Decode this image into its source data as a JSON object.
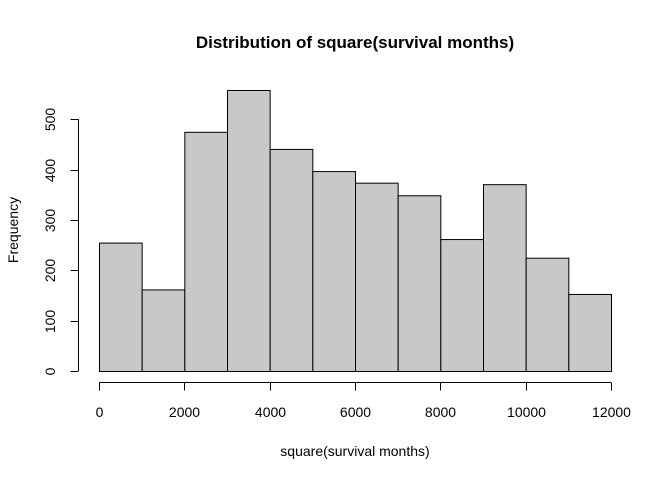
{
  "chart_data": {
    "type": "bar",
    "title": "Distribution of square(survival months)",
    "xlabel": "square(survival months)",
    "ylabel": "Frequency",
    "bin_edges": [
      0,
      1000,
      2000,
      3000,
      4000,
      5000,
      6000,
      7000,
      8000,
      9000,
      10000,
      11000,
      12000
    ],
    "values": [
      255,
      162,
      475,
      558,
      441,
      397,
      374,
      349,
      262,
      371,
      225,
      153
    ],
    "xlim": [
      0,
      12000
    ],
    "ylim": [
      0,
      558
    ],
    "xticks": [
      0,
      2000,
      4000,
      6000,
      8000,
      10000,
      12000
    ],
    "yticks": [
      0,
      100,
      200,
      300,
      400,
      500
    ],
    "bar_color": "#c8c8c8",
    "grid": false
  }
}
